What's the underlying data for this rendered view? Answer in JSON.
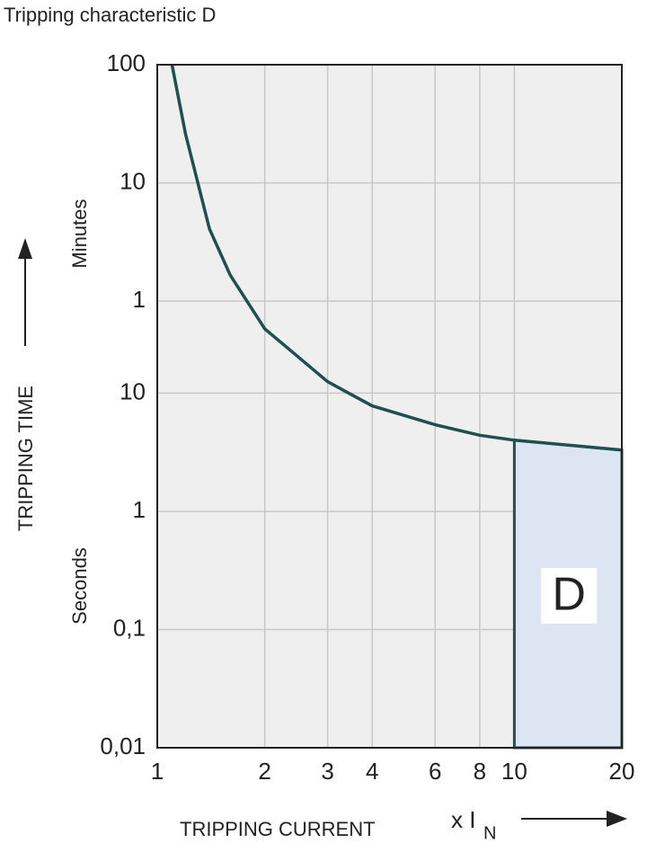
{
  "chart_data": {
    "type": "line",
    "title": "Tripping characteristic D",
    "y_label": "TRIPPING TIME",
    "y_upper_label": "Minutes",
    "y_lower_label": "Seconds",
    "x_label": "TRIPPING CURRENT",
    "x_unit": {
      "main": "x I",
      "sub": "N"
    },
    "x": [
      1.1,
      1.2,
      1.4,
      1.6,
      2,
      3,
      4,
      6,
      8,
      10,
      20
    ],
    "series": [
      {
        "color": "#1f4f4f",
        "values": [
          6000,
          1550,
          245,
          100,
          35,
          12.5,
          7.8,
          5.4,
          4.4,
          4,
          3.3
        ]
      }
    ],
    "region": {
      "label": "D",
      "xrange": [
        10,
        20
      ],
      "color": "#dde5f2"
    },
    "xlim": [
      1,
      20
    ],
    "xticks": [
      1,
      2,
      3,
      4,
      6,
      8,
      10,
      20
    ],
    "xscale": "log",
    "ylim": [
      0.01,
      6000
    ],
    "yscale": "log",
    "yticks": [
      {
        "value": 6000,
        "label": "100"
      },
      {
        "value": 600,
        "label": "10"
      },
      {
        "value": 60,
        "label": "1"
      },
      10,
      1,
      {
        "value": 0.1,
        "label": "0,1"
      },
      {
        "value": 0.01,
        "label": "0,01"
      }
    ],
    "grid": true
  }
}
